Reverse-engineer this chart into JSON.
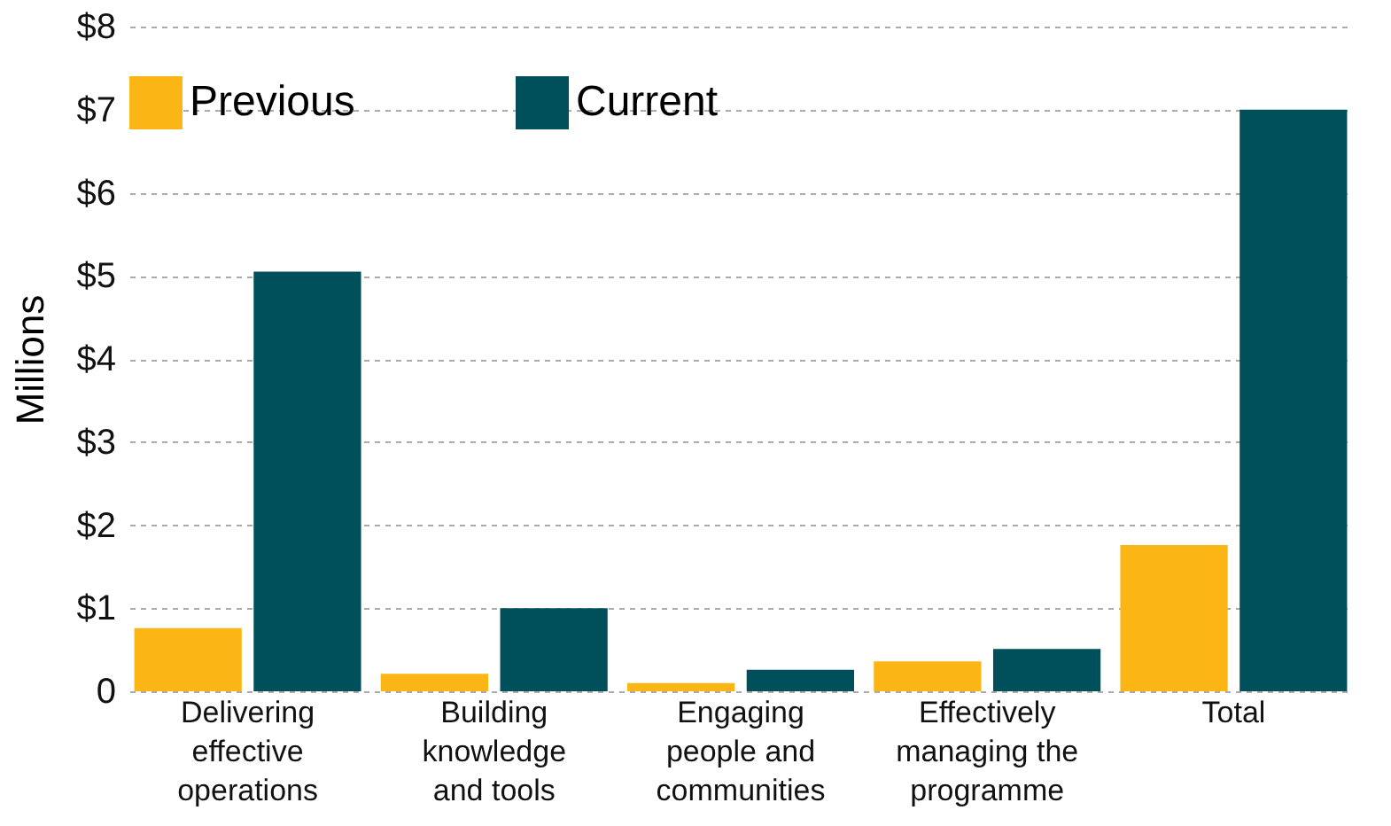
{
  "chart_data": {
    "type": "bar",
    "ylabel": "Millions",
    "categories": [
      "Delivering\neffective\noperations",
      "Building\nknowledge\nand tools",
      "Engaging\npeople and\ncommunities",
      "Effectively\nmanaging the\nprogramme",
      "Total"
    ],
    "series": [
      {
        "name": "Previous",
        "color": "#fbb616",
        "values": [
          0.76,
          0.21,
          0.1,
          0.36,
          1.76
        ]
      },
      {
        "name": "Current",
        "color": "#00505c",
        "values": [
          5.05,
          1.0,
          0.26,
          0.51,
          7.0
        ]
      }
    ],
    "ylim": [
      0,
      8
    ],
    "yticks": [
      0,
      {
        "value": 1,
        "label": "$1"
      },
      {
        "value": 2,
        "label": "$2"
      },
      {
        "value": 3,
        "label": "$3"
      },
      {
        "value": 4,
        "label": "$4"
      },
      {
        "value": 5,
        "label": "$5"
      },
      {
        "value": 6,
        "label": "$6"
      },
      {
        "value": 7,
        "label": "$7"
      },
      {
        "value": 8,
        "label": "$8"
      }
    ],
    "grid": "y",
    "legend": "top"
  }
}
